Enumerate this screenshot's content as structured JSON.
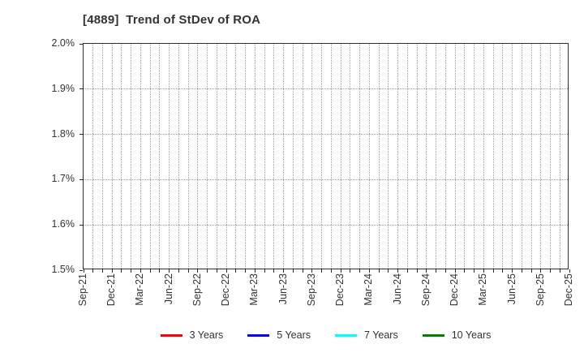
{
  "chart_data": {
    "type": "line",
    "title": "[4889]  Trend of StDev of ROA",
    "xlabel": "",
    "ylabel": "",
    "ylim": [
      1.5,
      2.0
    ],
    "y_unit": "%",
    "y_tick_values": [
      2.0,
      1.9,
      1.8,
      1.7,
      1.6,
      1.5
    ],
    "y_tick_labels": [
      "2.0%",
      "1.9%",
      "1.8%",
      "1.7%",
      "1.6%",
      "1.5%"
    ],
    "x_tick_labels": [
      "Sep-21",
      "Dec-21",
      "Mar-22",
      "Jun-22",
      "Sep-22",
      "Dec-22",
      "Mar-23",
      "Jun-23",
      "Sep-23",
      "Dec-23",
      "Mar-24",
      "Jun-24",
      "Sep-24",
      "Dec-24",
      "Mar-25",
      "Jun-25",
      "Sep-25",
      "Dec-25"
    ],
    "x_months_between_labels": 3,
    "x_total_intervals": 51,
    "grid": true,
    "legend_position": "bottom",
    "series": [
      {
        "name": "3 Years",
        "color": "#ff0000",
        "values": []
      },
      {
        "name": "5 Years",
        "color": "#0000ff",
        "values": []
      },
      {
        "name": "7 Years",
        "color": "#00ffff",
        "values": []
      },
      {
        "name": "10 Years",
        "color": "#008000",
        "values": []
      }
    ]
  },
  "colors": {
    "axis_border": "#2e2e2e",
    "gridline": "#a3a3a3",
    "text": "#333333",
    "background": "#ffffff"
  }
}
